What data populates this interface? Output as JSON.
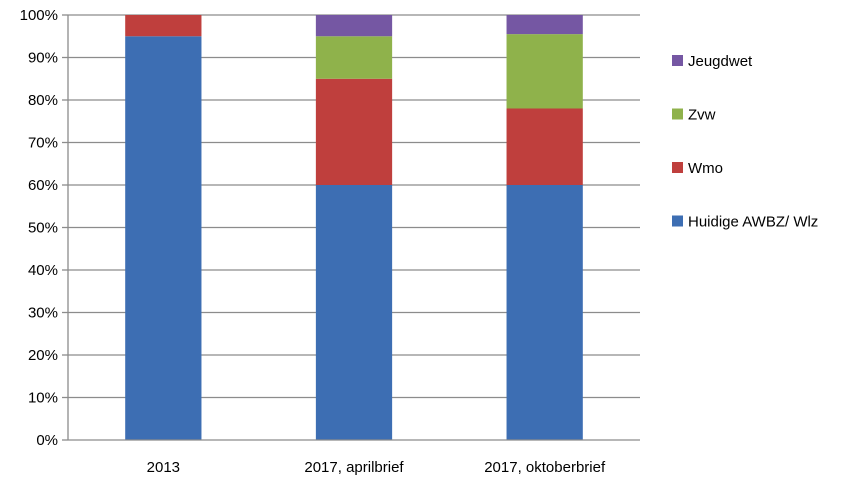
{
  "chart_data": {
    "type": "bar",
    "stacked": true,
    "categories": [
      "2013",
      "2017, aprilbrief",
      "2017, oktoberbrief"
    ],
    "series": [
      {
        "name": "Huidige AWBZ/ Wlz",
        "color": "#3d6eb3",
        "values": [
          95,
          60,
          60
        ]
      },
      {
        "name": "Wmo",
        "color": "#bf3f3d",
        "values": [
          5,
          25,
          18
        ]
      },
      {
        "name": "Zvw",
        "color": "#8fb24b",
        "values": [
          0,
          10,
          17.5
        ]
      },
      {
        "name": "Jeugdwet",
        "color": "#7557a3",
        "values": [
          0,
          5,
          4.5
        ]
      }
    ],
    "y_ticks": [
      "0%",
      "10%",
      "20%",
      "30%",
      "40%",
      "50%",
      "60%",
      "70%",
      "80%",
      "90%",
      "100%"
    ],
    "ylim": [
      0,
      100
    ],
    "grid": true,
    "legend": {
      "position": "right",
      "order": [
        "Jeugdwet",
        "Zvw",
        "Wmo",
        "Huidige AWBZ/ Wlz"
      ]
    }
  }
}
